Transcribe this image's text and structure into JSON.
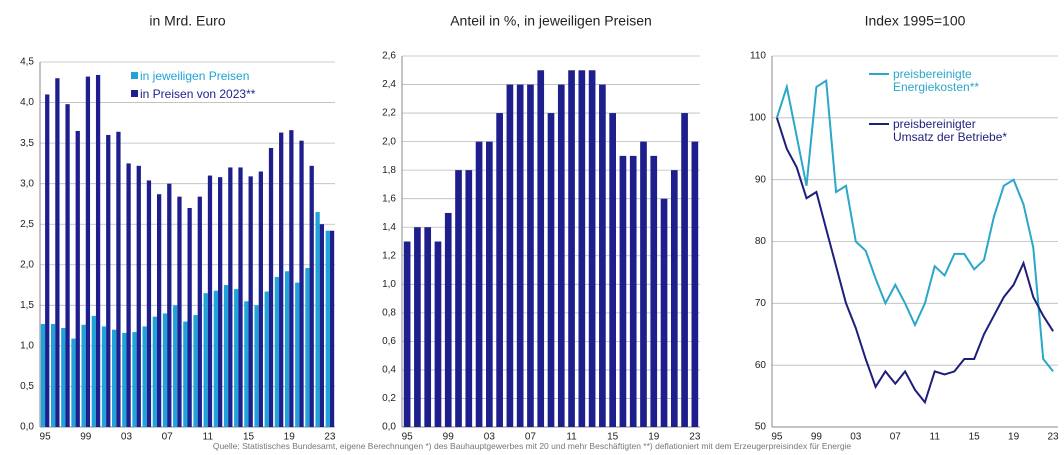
{
  "chart_data": [
    {
      "type": "bar",
      "title": "in Mrd. Euro",
      "categories": [
        "95",
        null,
        null,
        null,
        "99",
        null,
        null,
        null,
        "03",
        null,
        null,
        null,
        "07",
        null,
        null,
        null,
        "11",
        null,
        null,
        null,
        "15",
        null,
        null,
        null,
        "19",
        null,
        null,
        null,
        "23"
      ],
      "series": [
        {
          "name": "in jeweiligen Preisen",
          "color": "#1fa3d8",
          "values": [
            1.27,
            1.27,
            1.22,
            1.09,
            1.26,
            1.37,
            1.24,
            1.2,
            1.16,
            1.17,
            1.24,
            1.36,
            1.4,
            1.5,
            1.3,
            1.38,
            1.65,
            1.68,
            1.75,
            1.7,
            1.55,
            1.5,
            1.67,
            1.85,
            1.92,
            1.78,
            1.96,
            2.65,
            2.42
          ]
        },
        {
          "name": "in Preisen von 2023**",
          "color": "#1e1f8c",
          "values": [
            4.1,
            4.3,
            3.98,
            3.65,
            4.32,
            4.34,
            3.6,
            3.64,
            3.25,
            3.22,
            3.04,
            2.87,
            3.0,
            2.84,
            2.7,
            2.84,
            3.1,
            3.08,
            3.2,
            3.2,
            3.09,
            3.15,
            3.44,
            3.63,
            3.66,
            3.53,
            3.22,
            2.5,
            2.42
          ]
        }
      ],
      "ylim": [
        0,
        4.5
      ],
      "yticks": [
        {
          "value": 0,
          "label": "0,0"
        },
        {
          "value": 0.5,
          "label": "0,5"
        },
        {
          "value": 1,
          "label": "1,0"
        },
        {
          "value": 1.5,
          "label": "1,5"
        },
        {
          "value": 2,
          "label": "2,0"
        },
        {
          "value": 2.5,
          "label": "2,5"
        },
        {
          "value": 3,
          "label": "3,0"
        },
        {
          "value": 3.5,
          "label": "3,5"
        },
        {
          "value": 4,
          "label": "4,0"
        },
        {
          "value": 4.5,
          "label": "4,5"
        }
      ],
      "grid": true
    },
    {
      "type": "bar",
      "title": "Anteil in %, in jeweiligen Preisen",
      "categories": [
        "95",
        null,
        null,
        null,
        "99",
        null,
        null,
        null,
        "03",
        null,
        null,
        null,
        "07",
        null,
        null,
        null,
        "11",
        null,
        null,
        null,
        "15",
        null,
        null,
        null,
        "19",
        null,
        null,
        null,
        "23"
      ],
      "series": [
        {
          "color": "#1e1f8c",
          "values": [
            1.3,
            1.4,
            1.4,
            1.3,
            1.5,
            1.8,
            1.8,
            2.0,
            2.0,
            2.2,
            2.4,
            2.4,
            2.4,
            2.5,
            2.2,
            2.4,
            2.5,
            2.5,
            2.5,
            2.4,
            2.2,
            1.9,
            1.9,
            2.0,
            1.9,
            1.6,
            1.8,
            2.2,
            2.0
          ]
        }
      ],
      "ylim": [
        0,
        2.6
      ],
      "yticks": [
        {
          "value": 0,
          "label": "0,0"
        },
        {
          "value": 0.2,
          "label": "0,2"
        },
        {
          "value": 0.4,
          "label": "0,4"
        },
        {
          "value": 0.6,
          "label": "0,6"
        },
        {
          "value": 0.8,
          "label": "0,8"
        },
        {
          "value": 1,
          "label": "1,0"
        },
        {
          "value": 1.2,
          "label": "1,2"
        },
        {
          "value": 1.4,
          "label": "1,4"
        },
        {
          "value": 1.6,
          "label": "1,6"
        },
        {
          "value": 1.8,
          "label": "1,8"
        },
        {
          "value": 2,
          "label": "2,0"
        },
        {
          "value": 2.2,
          "label": "2,2"
        },
        {
          "value": 2.4,
          "label": "2,4"
        },
        {
          "value": 2.6,
          "label": "2,6"
        }
      ],
      "grid": true
    },
    {
      "type": "line",
      "title": "Index 1995=100",
      "categories": [
        "95",
        null,
        null,
        null,
        "99",
        null,
        null,
        null,
        "03",
        null,
        null,
        null,
        "07",
        null,
        null,
        null,
        "11",
        null,
        null,
        null,
        "15",
        null,
        null,
        null,
        "19",
        null,
        null,
        null,
        "23"
      ],
      "series": [
        {
          "name": "preisbereinigte Energiekosten**",
          "color": "#2aa7c9",
          "values": [
            100,
            105,
            97,
            89,
            105,
            106,
            88,
            89,
            80,
            78.5,
            74,
            70,
            73,
            70,
            66.5,
            70,
            76,
            74.5,
            78,
            78,
            75.5,
            77,
            84,
            89,
            90,
            86,
            79,
            61,
            59
          ]
        },
        {
          "name": "preisbereinigter Umsatz der Betriebe*",
          "color": "#1e1f7a",
          "values": [
            100,
            95,
            92,
            87,
            88,
            82,
            76,
            70,
            66,
            61,
            56.5,
            59,
            57,
            59,
            56,
            54,
            59,
            58.5,
            59,
            61,
            61,
            65,
            68,
            71,
            73,
            76.5,
            71,
            68,
            65.5
          ]
        }
      ],
      "ylim": [
        50,
        110
      ],
      "yticks": [
        50,
        60,
        70,
        80,
        90,
        100,
        110
      ],
      "grid": true
    }
  ],
  "note": "Quelle: Statistisches Bundesamt, eigene Berechnungen   *) des Bauhauptgewerbes mit 20 und mehr Beschäftigten   **) deflationiert mit dem Erzeugerpreisindex für Energie"
}
